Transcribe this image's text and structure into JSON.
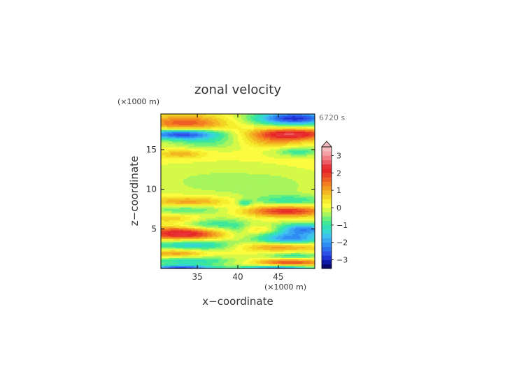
{
  "chart_data": {
    "type": "heatmap",
    "title": "zonal velocity",
    "xlabel": "x−coordinate",
    "ylabel": "z−coordinate",
    "x_unit_label": "(×1000 m)",
    "y_unit_label": "(×1000 m)",
    "time_label": "6720 s",
    "xlim": [
      30.5,
      49.5
    ],
    "ylim": [
      0,
      19.5
    ],
    "x_ticks": [
      35,
      40,
      45
    ],
    "y_ticks": [
      5,
      10,
      15
    ],
    "x_tick_labels": [
      "35",
      "40",
      "45"
    ],
    "y_tick_labels": [
      "5",
      "10",
      "15"
    ],
    "colorbar": {
      "levels": [
        -3.5,
        -3.25,
        -3,
        -2.75,
        -2.5,
        -2.25,
        -2,
        -1.75,
        -1.5,
        -1.25,
        -1,
        -0.75,
        -0.5,
        -0.25,
        0,
        0.25,
        0.5,
        0.75,
        1,
        1.25,
        1.5,
        1.75,
        2,
        2.25,
        2.5,
        2.75,
        3,
        3.25,
        3.5
      ],
      "colors": [
        "#08086e",
        "#0f1aa8",
        "#1f33d4",
        "#2f50e8",
        "#2b6fee",
        "#2f8cf2",
        "#3aa7f2",
        "#40c2f0",
        "#36d8d6",
        "#33e0b5",
        "#3ee898",
        "#6cf07a",
        "#a6f55e",
        "#d5f947",
        "#fbfb40",
        "#f6ed2e",
        "#f2d326",
        "#f3b722",
        "#f39a21",
        "#f27e21",
        "#ee5f25",
        "#ea4128",
        "#e6272a",
        "#e8333a",
        "#ec5c64",
        "#f07e84",
        "#f3a0a6",
        "#f5bcc0"
      ],
      "tick_values": [
        -3,
        -2,
        -1,
        0,
        1,
        2,
        3
      ],
      "tick_labels": [
        "−3",
        "−2",
        "−1",
        "0",
        "1",
        "2",
        "3"
      ],
      "extend": "max"
    },
    "features": [
      {
        "x": 33.5,
        "z": 18.4,
        "amp": 1.6,
        "sx": 3.5,
        "sz": 0.7
      },
      {
        "x": 33.0,
        "z": 17.0,
        "amp": -2.8,
        "sx": 3.5,
        "sz": 0.45
      },
      {
        "x": 36.5,
        "z": 16.0,
        "amp": -0.8,
        "sx": 3.5,
        "sz": 0.6
      },
      {
        "x": 47.0,
        "z": 19.0,
        "amp": -3.0,
        "sx": 3.5,
        "sz": 0.6
      },
      {
        "x": 46.5,
        "z": 17.0,
        "amp": 2.4,
        "sx": 3.5,
        "sz": 0.5
      },
      {
        "x": 44.0,
        "z": 16.0,
        "amp": 0.8,
        "sx": 3.0,
        "sz": 0.5
      },
      {
        "x": 33.0,
        "z": 14.5,
        "amp": 0.9,
        "sx": 2.0,
        "sz": 0.4
      },
      {
        "x": 47.5,
        "z": 14.8,
        "amp": -1.0,
        "sx": 2.0,
        "sz": 0.4
      },
      {
        "x": 37.0,
        "z": 11.0,
        "amp": -0.4,
        "sx": 6.0,
        "sz": 1.5
      },
      {
        "x": 45.0,
        "z": 10.5,
        "amp": -0.3,
        "sx": 4.0,
        "sz": 1.2
      },
      {
        "x": 34.0,
        "z": 8.5,
        "amp": 1.1,
        "sx": 3.5,
        "sz": 0.45
      },
      {
        "x": 33.5,
        "z": 7.5,
        "amp": -0.8,
        "sx": 3.5,
        "sz": 0.4
      },
      {
        "x": 33.0,
        "z": 6.3,
        "amp": 0.8,
        "sx": 3.0,
        "sz": 0.4
      },
      {
        "x": 36.5,
        "z": 5.5,
        "amp": -1.3,
        "sx": 3.0,
        "sz": 0.8
      },
      {
        "x": 33.5,
        "z": 4.5,
        "amp": 2.7,
        "sx": 3.5,
        "sz": 0.6
      },
      {
        "x": 34.5,
        "z": 3.0,
        "amp": -1.6,
        "sx": 4.0,
        "sz": 0.5
      },
      {
        "x": 32.5,
        "z": 2.0,
        "amp": 1.2,
        "sx": 2.5,
        "sz": 0.4
      },
      {
        "x": 34.0,
        "z": 1.0,
        "amp": -1.3,
        "sx": 4.0,
        "sz": 0.4
      },
      {
        "x": 33.0,
        "z": 0.1,
        "amp": -2.8,
        "sx": 3.0,
        "sz": 0.25
      },
      {
        "x": 46.5,
        "z": 8.6,
        "amp": -1.0,
        "sx": 3.5,
        "sz": 0.5
      },
      {
        "x": 46.0,
        "z": 7.3,
        "amp": 2.0,
        "sx": 3.5,
        "sz": 0.5
      },
      {
        "x": 47.5,
        "z": 5.0,
        "amp": -2.6,
        "sx": 3.0,
        "sz": 0.5
      },
      {
        "x": 44.0,
        "z": 5.0,
        "amp": 1.2,
        "sx": 2.5,
        "sz": 0.4
      },
      {
        "x": 46.5,
        "z": 3.8,
        "amp": -2.1,
        "sx": 3.0,
        "sz": 0.5
      },
      {
        "x": 45.0,
        "z": 2.8,
        "amp": 1.2,
        "sx": 4.0,
        "sz": 0.4
      },
      {
        "x": 47.0,
        "z": 1.6,
        "amp": -1.1,
        "sx": 2.5,
        "sz": 0.3
      },
      {
        "x": 46.5,
        "z": 0.8,
        "amp": 1.8,
        "sx": 3.0,
        "sz": 0.35
      },
      {
        "x": 45.0,
        "z": 0.1,
        "amp": -2.4,
        "sx": 3.5,
        "sz": 0.25
      },
      {
        "x": 40.0,
        "z": 5.0,
        "amp": -0.6,
        "sx": 1.0,
        "sz": 0.6
      },
      {
        "x": 40.8,
        "z": 8.3,
        "amp": -1.0,
        "sx": 0.6,
        "sz": 0.3
      }
    ],
    "grid": false
  }
}
